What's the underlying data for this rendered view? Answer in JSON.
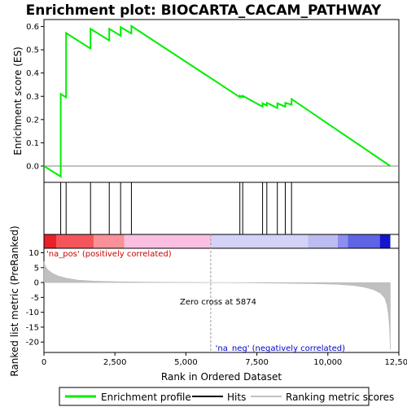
{
  "chart_data": {
    "type": "line",
    "title": "Enrichment plot: BIOCARTA_CACAM_PATHWAY",
    "es_panel": {
      "ylabel": "Enrichment score (ES)",
      "ylim": [
        -0.07,
        0.63
      ],
      "yticks": [
        0.0,
        0.1,
        0.2,
        0.3,
        0.4,
        0.5,
        0.6
      ],
      "ytick_labels": [
        "0.0",
        "0.1",
        "0.2",
        "0.3",
        "0.4",
        "0.5",
        "0.6"
      ],
      "series": [
        {
          "name": "Enrichment profile",
          "color": "#00ee00",
          "x": [
            0,
            590,
            590,
            780,
            780,
            1640,
            1640,
            2300,
            2300,
            2700,
            2700,
            3080,
            3080,
            6900,
            6900,
            7000,
            7000,
            7700,
            7700,
            7850,
            7850,
            8220,
            8220,
            8500,
            8500,
            8720,
            8720,
            12200
          ],
          "y": [
            0.0,
            -0.045,
            0.31,
            0.295,
            0.572,
            0.505,
            0.59,
            0.54,
            0.59,
            0.56,
            0.597,
            0.57,
            0.602,
            0.296,
            0.302,
            0.296,
            0.302,
            0.255,
            0.27,
            0.26,
            0.272,
            0.25,
            0.27,
            0.255,
            0.272,
            0.264,
            0.288,
            0.0
          ]
        }
      ]
    },
    "hits": {
      "name": "Hits",
      "x": [
        590,
        780,
        1640,
        2300,
        2700,
        3080,
        6900,
        7000,
        7700,
        7850,
        8220,
        8500,
        8720
      ]
    },
    "color_bar": {
      "segments": [
        {
          "from": 0,
          "to": 430,
          "color": "#e8212a"
        },
        {
          "from": 430,
          "to": 1750,
          "color": "#f4555a"
        },
        {
          "from": 1750,
          "to": 2830,
          "color": "#f99198"
        },
        {
          "from": 2830,
          "to": 5874,
          "color": "#fbbfe3"
        },
        {
          "from": 5874,
          "to": 9300,
          "color": "#d4d2f7"
        },
        {
          "from": 9300,
          "to": 10350,
          "color": "#bdbcf0"
        },
        {
          "from": 10350,
          "to": 10700,
          "color": "#8d8ef0"
        },
        {
          "from": 10700,
          "to": 11830,
          "color": "#5f63e5"
        },
        {
          "from": 11830,
          "to": 12200,
          "color": "#1515cc"
        }
      ]
    },
    "metric_panel": {
      "ylabel": "Ranked list metric (PreRanked)",
      "ylim": [
        -23.5,
        11.5
      ],
      "yticks": [
        10,
        5,
        0,
        -5,
        -10,
        -15,
        -20
      ],
      "ytick_labels": [
        "10",
        "5",
        "0",
        "-5",
        "-10",
        "-15",
        "-20"
      ],
      "series": [
        {
          "name": "Ranking metric scores",
          "color": "#c0c0c0",
          "x": [
            0,
            60,
            150,
            300,
            500,
            800,
            1200,
            1800,
            2500,
            3500,
            4500,
            5874,
            7000,
            8500,
            9500,
            10300,
            10900,
            11300,
            11600,
            11850,
            12000,
            12080,
            12130,
            12170,
            12200
          ],
          "y": [
            7.0,
            5.2,
            4.2,
            3.1,
            2.2,
            1.4,
            0.8,
            0.45,
            0.3,
            0.15,
            0.07,
            0.0,
            -0.1,
            -0.25,
            -0.4,
            -0.6,
            -1.0,
            -1.6,
            -2.4,
            -3.6,
            -5.2,
            -7.5,
            -10.5,
            -15.0,
            -22.5
          ]
        }
      ],
      "annotations": {
        "pos": "'na_pos' (positively correlated)",
        "neg": "'na_neg' (negatively correlated)",
        "zero_cross": "Zero cross at 5874"
      },
      "zero_cross_x": 5874
    },
    "xaxis": {
      "xlabel": "Rank in Ordered Dataset",
      "xlim": [
        0,
        12500
      ],
      "xticks": [
        0,
        2500,
        5000,
        7500,
        10000,
        12500
      ],
      "xtick_labels": [
        "0",
        "2,500",
        "5,000",
        "7,500",
        "10,000",
        "12,500"
      ]
    },
    "legend": {
      "placement": "bottom",
      "items": [
        {
          "label": "Enrichment profile",
          "color": "#00ee00"
        },
        {
          "label": "Hits",
          "color": "#000000"
        },
        {
          "label": "Ranking metric scores",
          "color": "#c0c0c0"
        }
      ]
    },
    "grid": false
  }
}
